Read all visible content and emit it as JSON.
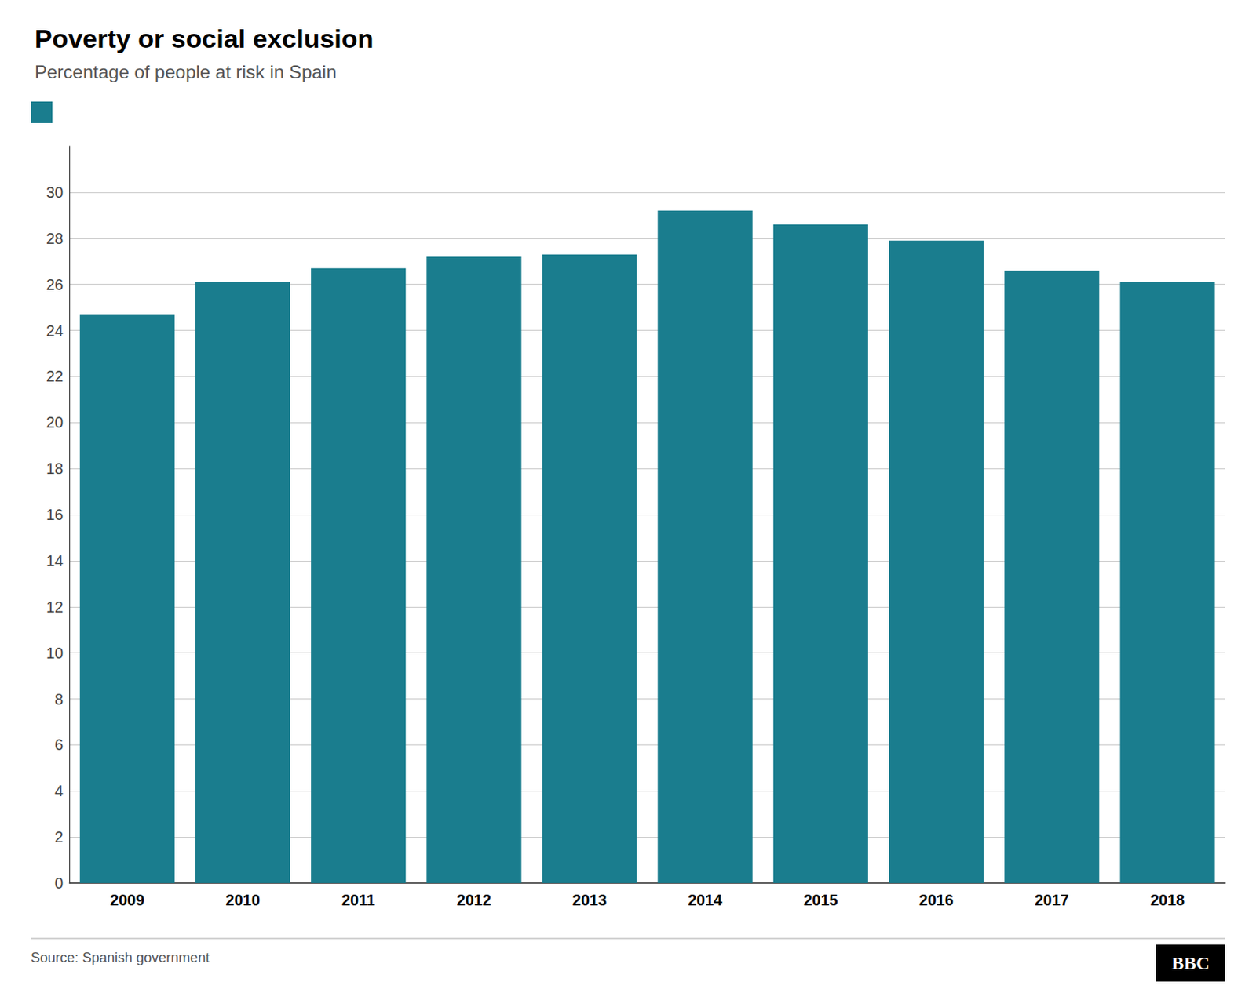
{
  "chart_data": {
    "type": "bar",
    "title": "Poverty or social exclusion",
    "subtitle": "Percentage of people at risk in Spain",
    "source": "Source: Spanish government",
    "annotations": [
      "BBC"
    ],
    "categories": [
      "2009",
      "2010",
      "2011",
      "2012",
      "2013",
      "2014",
      "2015",
      "2016",
      "2017",
      "2018"
    ],
    "values": [
      24.7,
      26.1,
      26.7,
      27.2,
      27.3,
      29.2,
      28.6,
      27.9,
      26.6,
      26.1
    ],
    "color": "#1a7d8e",
    "ylim": [
      0,
      32
    ],
    "yticks": [
      0,
      2,
      4,
      6,
      8,
      10,
      12,
      14,
      16,
      18,
      20,
      22,
      24,
      26,
      28,
      30
    ],
    "grid": true
  }
}
